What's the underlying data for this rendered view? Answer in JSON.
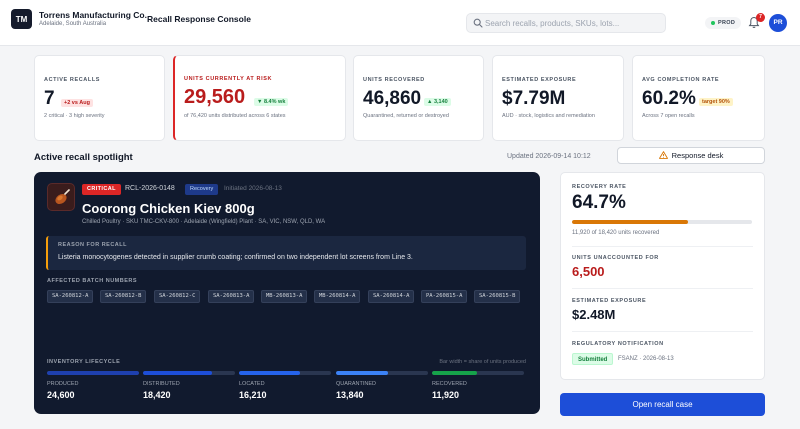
{
  "header": {
    "logo_text": "TM",
    "company": "Torrens Manufacturing Co.",
    "location": "Adelaide, South Australia",
    "title": "Recall Response Console",
    "search_placeholder": "Search recalls, products, SKUs, lots...",
    "env_label": "PROD",
    "notification_count": "7",
    "user_initials": "PR"
  },
  "kpis": [
    {
      "label": "ACTIVE RECALLS",
      "value": "7",
      "delta": "+2 vs Aug",
      "sub": "2 critical · 3 high severity"
    },
    {
      "label": "UNITS CURRENTLY AT RISK",
      "value": "29,560",
      "delta": "▼ 8.4% wk",
      "sub": "of 76,420 units distributed across 6 states"
    },
    {
      "label": "UNITS RECOVERED",
      "value": "46,860",
      "delta": "▲ 3,140",
      "sub": "Quarantined, returned or destroyed"
    },
    {
      "label": "ESTIMATED EXPOSURE",
      "value": "$7.79M",
      "delta": "",
      "sub": "AUD · stock, logistics and remediation"
    },
    {
      "label": "AVG COMPLETION RATE",
      "value": "60.2%",
      "delta": "target 90%",
      "sub": "Across 7 open recalls"
    }
  ],
  "spotlight": {
    "title": "Active recall spotlight",
    "updated": "Updated 2026-09-14 10:12",
    "response_desk": "Response desk"
  },
  "recall": {
    "severity": "CRITICAL",
    "id": "RCL-2026-0148",
    "stage": "Recovery",
    "initiated": "Initiated 2026-08-13",
    "product": "Coorong Chicken Kiev 800g",
    "meta": "Chilled Poultry · SKU TMC-CKV-800 · Adelaide (Wingfield) Plant · SA, VIC, NSW, QLD, WA",
    "reason_label": "REASON FOR RECALL",
    "reason": "Listeria monocytogenes detected in supplier crumb coating; confirmed on two independent lot screens from Line 3.",
    "batches_label": "AFFECTED BATCH NUMBERS",
    "batches": [
      "SA-260812-A",
      "SA-260812-B",
      "SA-260812-C",
      "SA-260813-A",
      "MB-260813-A",
      "MB-260814-A",
      "SA-260814-A",
      "PA-260815-A",
      "SA-260815-B"
    ],
    "lifecycle_label": "INVENTORY LIFECYCLE",
    "lifecycle_note": "Bar width = share of units produced",
    "lifecycle": [
      {
        "name": "PRODUCED",
        "value": "24,600",
        "share": 1.0,
        "color": "#1e40af"
      },
      {
        "name": "DISTRIBUTED",
        "value": "18,420",
        "share": 0.749,
        "color": "#1d4ed8"
      },
      {
        "name": "LOCATED",
        "value": "16,210",
        "share": 0.659,
        "color": "#2563eb"
      },
      {
        "name": "QUARANTINED",
        "value": "13,840",
        "share": 0.563,
        "color": "#3b82f6"
      },
      {
        "name": "RECOVERED",
        "value": "11,920",
        "share": 0.485,
        "color": "#16a34a"
      }
    ]
  },
  "panel": {
    "rate_label": "RECOVERY RATE",
    "rate_value": "64.7%",
    "rate_fraction": 0.647,
    "rate_sub": "11,920 of 18,420 units recovered",
    "unaccounted_label": "UNITS UNACCOUNTED FOR",
    "unaccounted_value": "6,500",
    "exposure_label": "ESTIMATED EXPOSURE",
    "exposure_value": "$2.48M",
    "reg_label": "REGULATORY NOTIFICATION",
    "reg_status": "Submitted",
    "reg_detail": "FSANZ · 2026-08-13",
    "open_button": "Open recall case"
  },
  "colors": {
    "accent": "#1d4ed8",
    "critical": "#dc2626",
    "dark_card": "#111a2e",
    "progress": "#d97706"
  }
}
